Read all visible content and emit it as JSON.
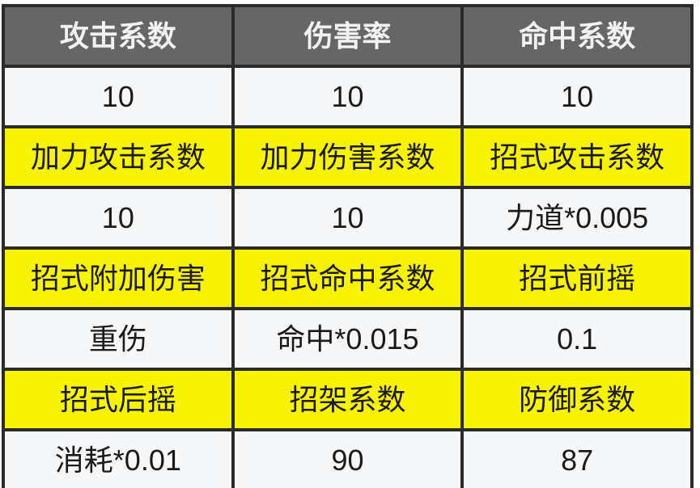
{
  "table": {
    "columns": 3,
    "rows": [
      {
        "type": "header",
        "cells": [
          "攻击系数",
          "伤害率",
          "命中系数"
        ]
      },
      {
        "type": "value",
        "cells": [
          "10",
          "10",
          "10"
        ]
      },
      {
        "type": "label",
        "cells": [
          "加力攻击系数",
          "加力伤害系数",
          "招式攻击系数"
        ]
      },
      {
        "type": "value",
        "cells": [
          "10",
          "10",
          "力道*0.005"
        ]
      },
      {
        "type": "label",
        "cells": [
          "招式附加伤害",
          "招式命中系数",
          "招式前摇"
        ]
      },
      {
        "type": "value",
        "cells": [
          "重伤",
          "命中*0.015",
          "0.1"
        ]
      },
      {
        "type": "label",
        "cells": [
          "招式后摇",
          "招架系数",
          "防御系数"
        ]
      },
      {
        "type": "value",
        "cells": [
          "消耗*0.01",
          "90",
          "87"
        ]
      }
    ]
  },
  "colors": {
    "border": "#2b2b2b",
    "header_bg": "#666666",
    "header_text": "#f2f2f2",
    "label_bg": "#f8f400",
    "value_bg": "#f6f7f9",
    "text": "#1a1a1a"
  }
}
